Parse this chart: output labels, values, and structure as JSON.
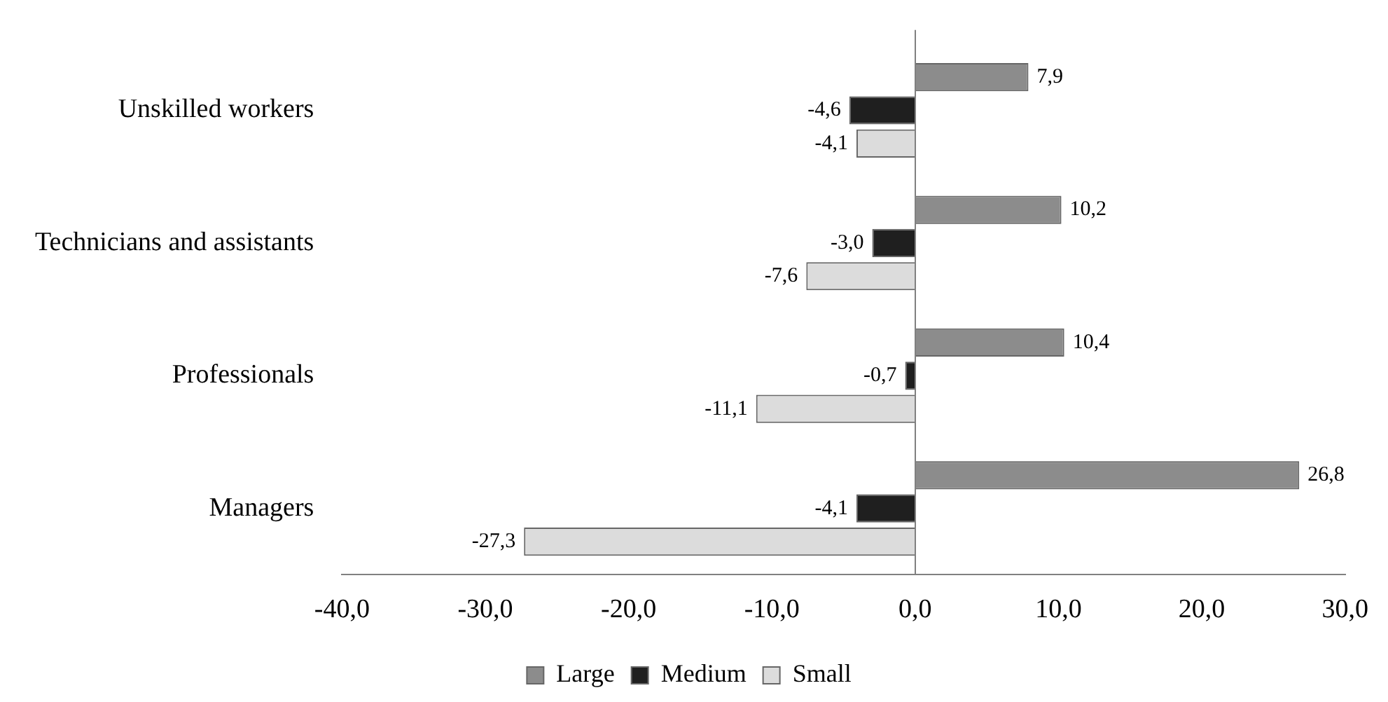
{
  "chart_data": {
    "type": "bar",
    "orientation": "horizontal",
    "categories": [
      "Unskilled workers",
      "Technicians and assistants",
      "Professionals",
      "Managers"
    ],
    "series": [
      {
        "name": "Large",
        "color": "#8c8c8c",
        "values": [
          7.9,
          10.2,
          10.4,
          26.8
        ],
        "value_labels": [
          "7,9",
          "10,2",
          "10,4",
          "26,8"
        ]
      },
      {
        "name": "Medium",
        "color": "#1f1f1f",
        "values": [
          -4.6,
          -3.0,
          -0.7,
          -4.1
        ],
        "value_labels": [
          "-4,6",
          "-3,0",
          "-0,7",
          "-4,1"
        ]
      },
      {
        "name": "Small",
        "color": "#dcdcdc",
        "values": [
          -4.1,
          -7.6,
          -11.1,
          -27.3
        ],
        "value_labels": [
          "-4,1",
          "-7,6",
          "-11,1",
          "-27,3"
        ]
      }
    ],
    "xlim": [
      -40,
      30
    ],
    "xticks": [
      {
        "value": -40,
        "label": "-40,0"
      },
      {
        "value": -30,
        "label": "-30,0"
      },
      {
        "value": -20,
        "label": "-20,0"
      },
      {
        "value": -10,
        "label": "-10,0"
      },
      {
        "value": 0,
        "label": "0,0"
      },
      {
        "value": 10,
        "label": "10,0"
      },
      {
        "value": 20,
        "label": "20,0"
      },
      {
        "value": 30,
        "label": "30,0"
      }
    ],
    "ref_lines": [
      {
        "axis": "x",
        "value": 0,
        "color": "#808080"
      }
    ],
    "grid": false,
    "legend": "bottom"
  }
}
